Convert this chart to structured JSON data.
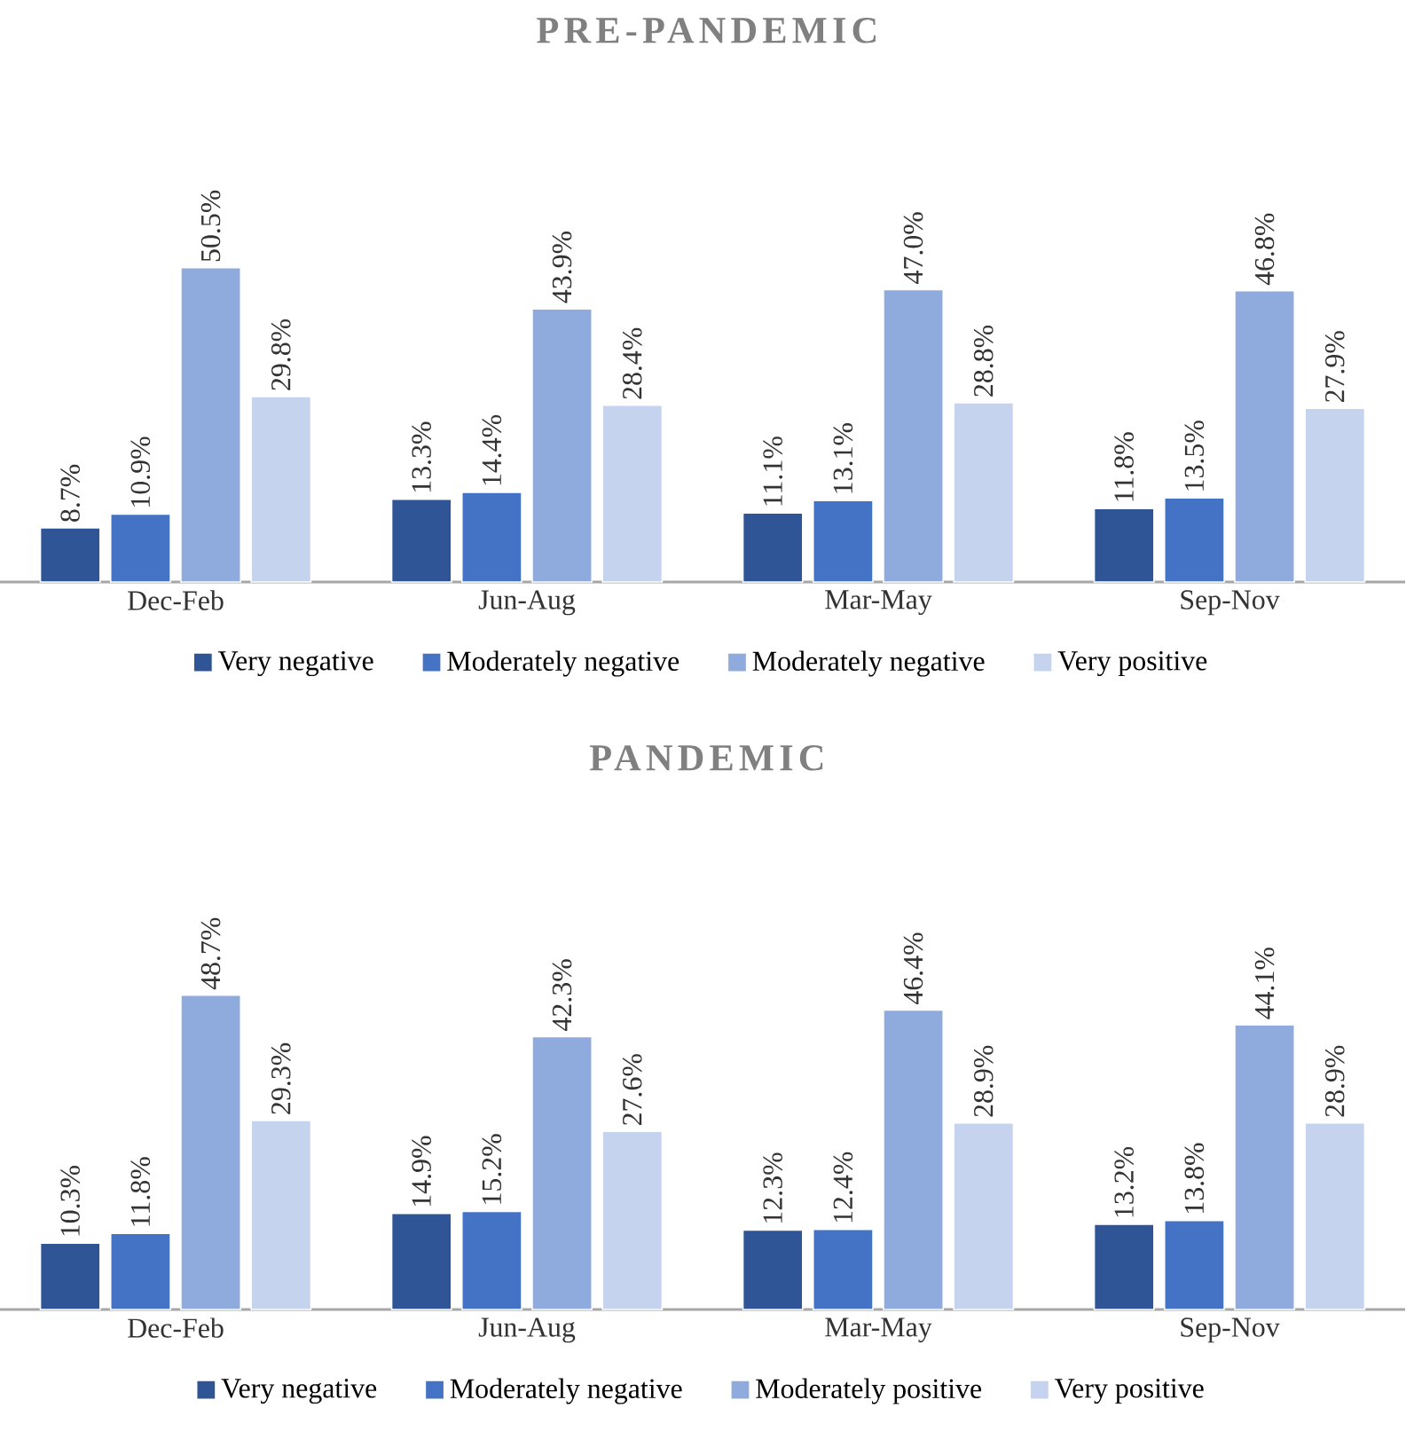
{
  "chart_data": [
    {
      "type": "bar",
      "title": "PRE-PANDEMIC",
      "categories": [
        "Dec-Feb",
        "Jun-Aug",
        "Mar-May",
        "Sep-Nov"
      ],
      "legend": "bottom",
      "series": [
        {
          "name": "Very negative",
          "color": "#2f5597",
          "values": [
            8.7,
            13.3,
            11.1,
            11.8
          ],
          "value_labels": [
            "8.7%",
            "13.3%",
            "11.1%",
            "11.8%"
          ]
        },
        {
          "name": "Moderately negative",
          "color": "#4472c4",
          "values": [
            10.9,
            14.4,
            13.1,
            13.5
          ],
          "value_labels": [
            "10.9%",
            "14.4%",
            "13.1%",
            "13.5%"
          ]
        },
        {
          "name": "Moderately negative",
          "color": "#8faadc",
          "values": [
            50.5,
            43.9,
            47.0,
            46.8
          ],
          "value_labels": [
            "50.5%",
            "43.9%",
            "47.0%",
            "46.8%"
          ]
        },
        {
          "name": "Very positive",
          "color": "#c5d3ee",
          "values": [
            29.8,
            28.4,
            28.8,
            27.9
          ],
          "value_labels": [
            "29.8%",
            "28.4%",
            "28.8%",
            "27.9%"
          ]
        }
      ]
    },
    {
      "type": "bar",
      "title": "PANDEMIC",
      "categories": [
        "Dec-Feb",
        "Jun-Aug",
        "Mar-May",
        "Sep-Nov"
      ],
      "legend": "bottom",
      "series": [
        {
          "name": "Very negative",
          "color": "#2f5597",
          "values": [
            10.3,
            14.9,
            12.3,
            13.2
          ],
          "value_labels": [
            "10.3%",
            "14.9%",
            "12.3%",
            "13.2%"
          ]
        },
        {
          "name": "Moderately negative",
          "color": "#4472c4",
          "values": [
            11.8,
            15.2,
            12.4,
            13.8
          ],
          "value_labels": [
            "11.8%",
            "15.2%",
            "12.4%",
            "13.8%"
          ]
        },
        {
          "name": "Moderately positive",
          "color": "#8faadc",
          "values": [
            48.7,
            42.3,
            46.4,
            44.1
          ],
          "value_labels": [
            "48.7%",
            "42.3%",
            "46.4%",
            "44.1%"
          ]
        },
        {
          "name": "Very positive",
          "color": "#c5d3ee",
          "values": [
            29.3,
            27.6,
            28.9,
            28.9
          ],
          "value_labels": [
            "29.3%",
            "27.6%",
            "28.9%",
            "28.9%"
          ]
        }
      ]
    }
  ]
}
